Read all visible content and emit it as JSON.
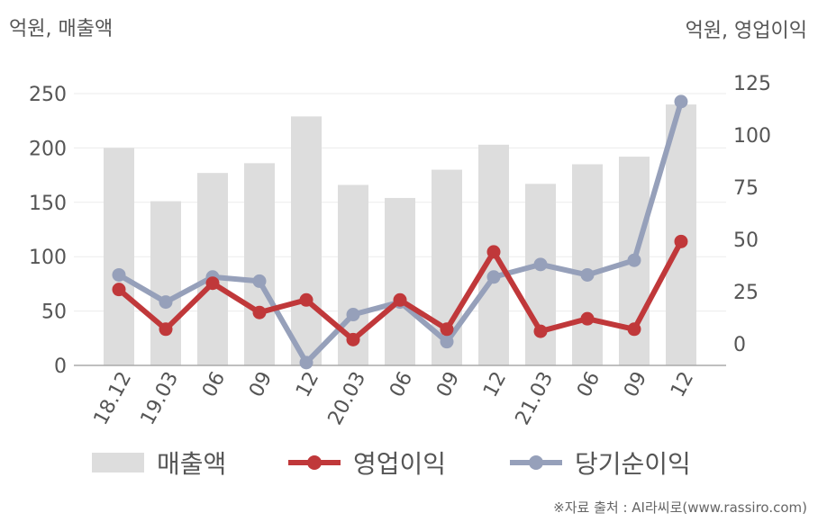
{
  "unit_left": "억원, 매출액",
  "unit_right": "억원, 영업이익",
  "source": "※자료 출처 : AI라씨로(www.rassiro.com)",
  "chart_data": {
    "type": "bar+line",
    "categories": [
      "18.12",
      "19.03",
      "06",
      "09",
      "12",
      "20.03",
      "06",
      "09",
      "12",
      "21.03",
      "06",
      "09",
      "12"
    ],
    "y_left": {
      "ticks": [
        0,
        50,
        100,
        150,
        200,
        250
      ],
      "range": [
        0,
        250
      ]
    },
    "y_right": {
      "ticks": [
        0,
        25,
        50,
        75,
        100,
        125
      ],
      "range": [
        -10,
        130
      ]
    },
    "series": [
      {
        "name": "매출액",
        "type": "bar",
        "axis": "left",
        "color": "#dddddd",
        "values": [
          200,
          151,
          177,
          186,
          229,
          166,
          154,
          180,
          203,
          167,
          185,
          192,
          240
        ]
      },
      {
        "name": "영업이익",
        "type": "line",
        "axis": "right",
        "color": "#c0383a",
        "values": [
          26,
          7,
          29,
          15,
          21,
          2,
          21,
          7,
          44,
          6,
          12,
          7,
          49
        ]
      },
      {
        "name": "당기순이익",
        "type": "line",
        "axis": "right",
        "color": "#96a0ba",
        "values": [
          33,
          20,
          32,
          30,
          -9,
          14,
          20,
          1,
          32,
          38,
          33,
          40,
          116
        ]
      }
    ],
    "grid": true,
    "legend": "bottom"
  }
}
